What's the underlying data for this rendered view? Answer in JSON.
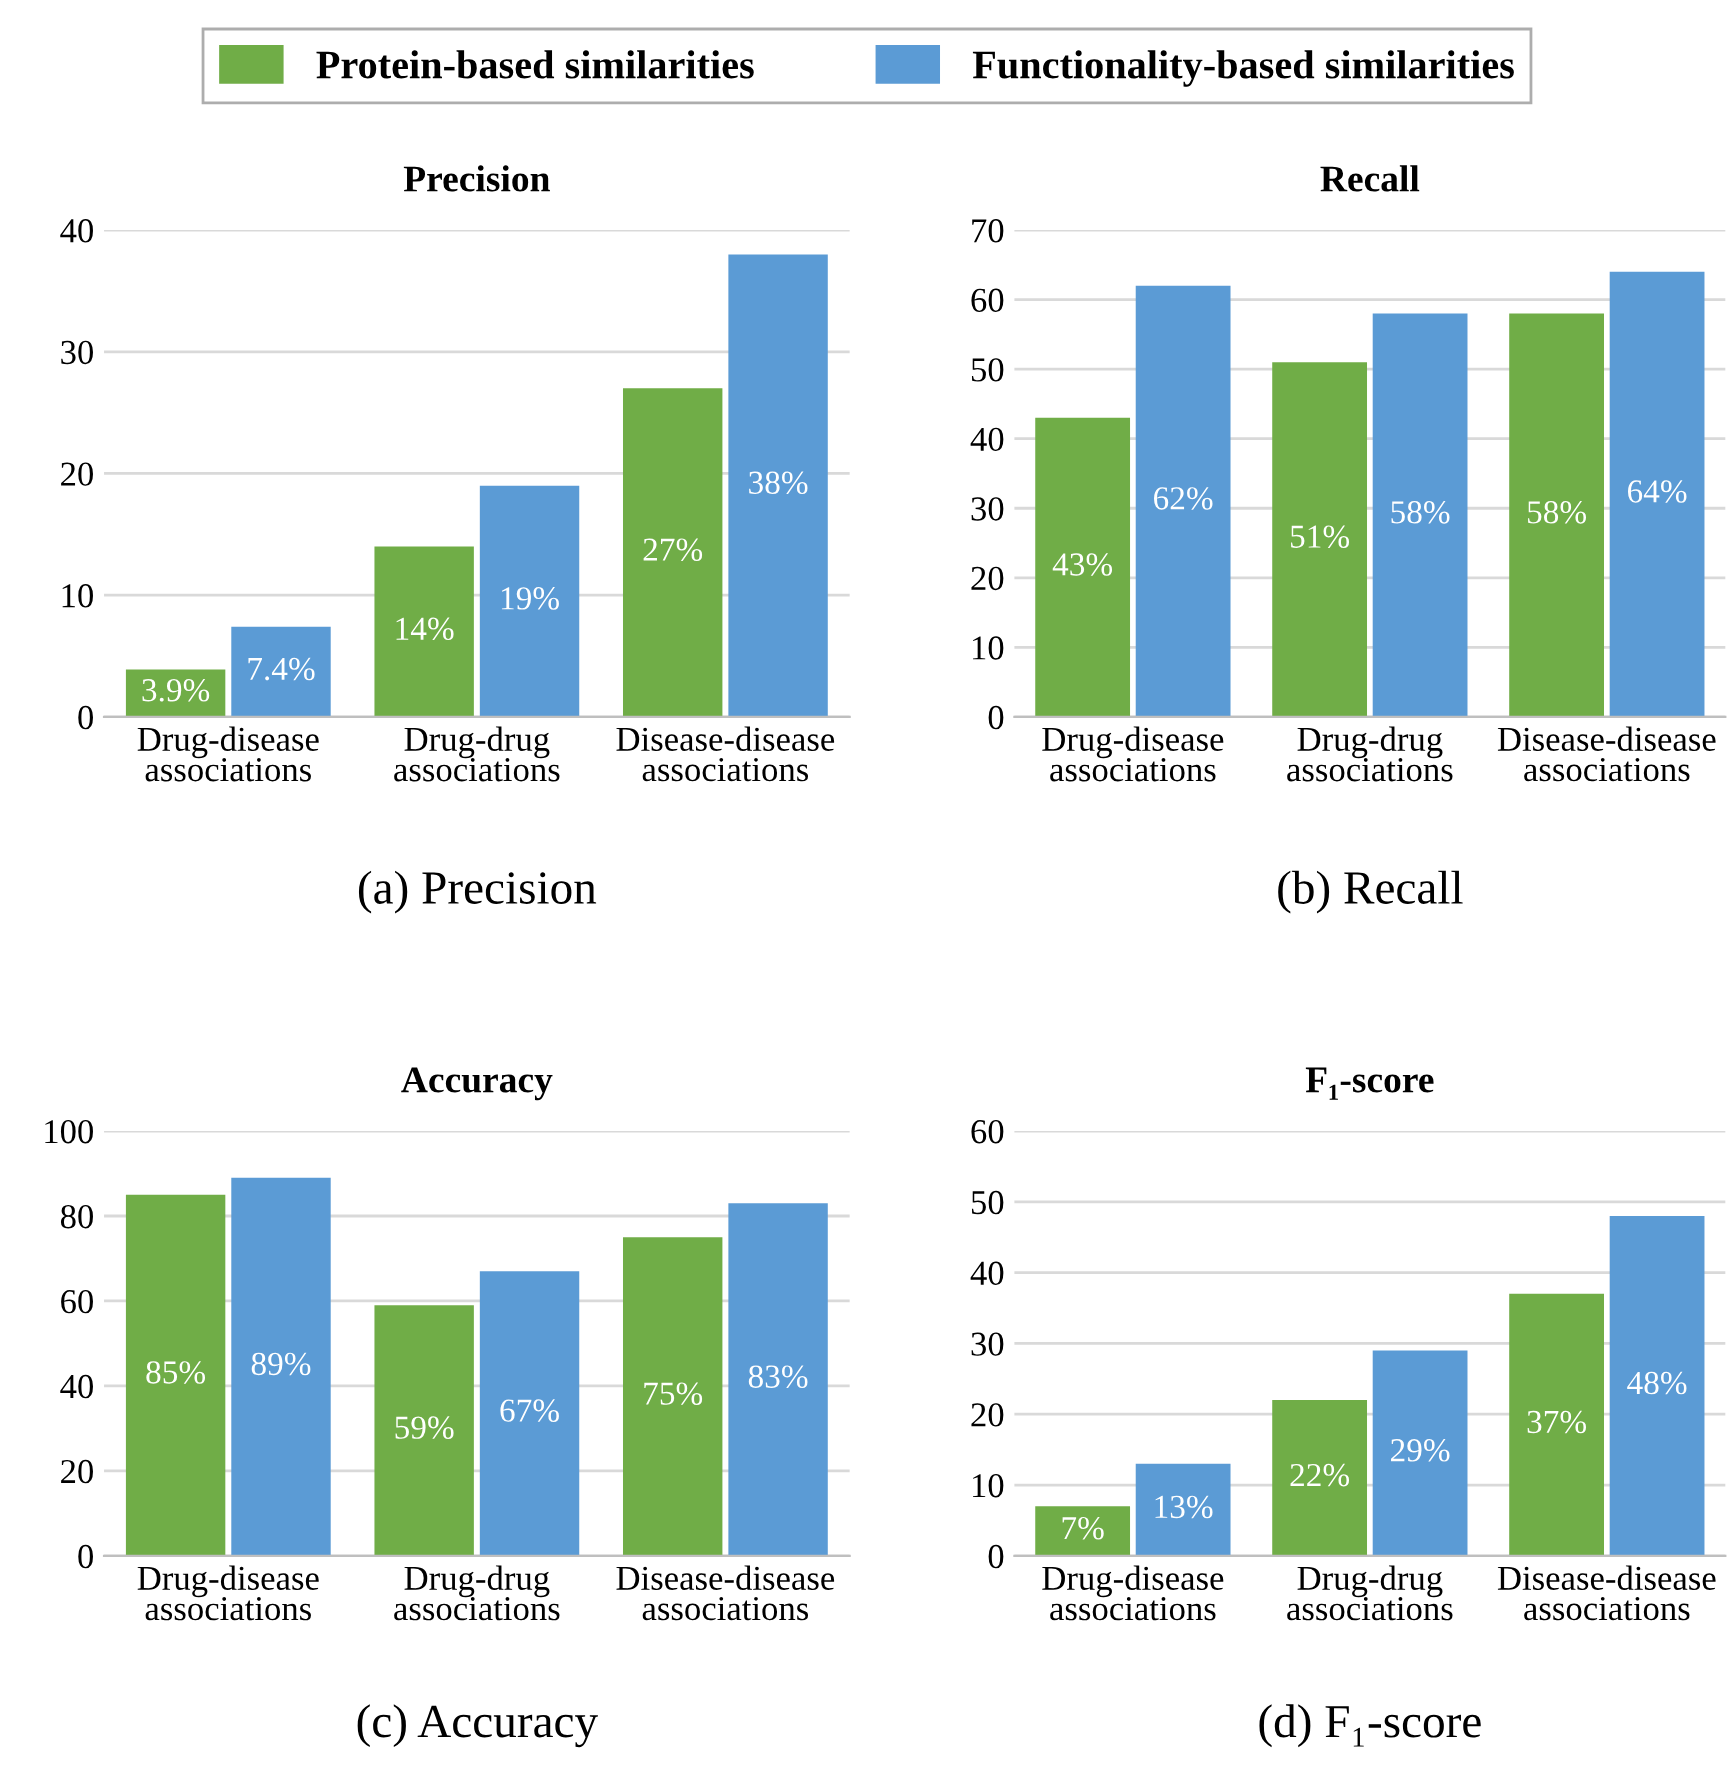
{
  "chart_data": [
    {
      "type": "bar",
      "title": "Precision",
      "categories": [
        "Drug-disease\nassociations",
        "Drug-drug\nassociations",
        "Disease-disease\nassociations"
      ],
      "series": [
        {
          "name": "Protein-based similarities",
          "color": "#70ad47",
          "values": [
            3.9,
            14,
            27
          ],
          "value_labels": [
            "3.9%",
            "14%",
            "27%"
          ]
        },
        {
          "name": "Functionality-based similarities",
          "color": "#5b9bd5",
          "values": [
            7.4,
            19,
            38
          ],
          "value_labels": [
            "7.4%",
            "19%",
            "38%"
          ]
        }
      ],
      "ylim": [
        0,
        40
      ],
      "yticks": [
        0,
        10,
        20,
        30,
        40
      ],
      "grid": "y",
      "legend": "top",
      "annotations": [
        "(a) Precision"
      ]
    },
    {
      "type": "bar",
      "title": "Recall",
      "categories": [
        "Drug-disease\nassociations",
        "Drug-drug\nassociations",
        "Disease-disease\nassociations"
      ],
      "series": [
        {
          "color": "#70ad47",
          "values": [
            43,
            51,
            58
          ],
          "value_labels": [
            "43%",
            "51%",
            "58%"
          ]
        },
        {
          "color": "#5b9bd5",
          "values": [
            62,
            58,
            64
          ],
          "value_labels": [
            "62%",
            "58%",
            "64%"
          ]
        }
      ],
      "ylim": [
        0,
        70
      ],
      "yticks": [
        0,
        10,
        20,
        30,
        40,
        50,
        60,
        70
      ],
      "grid": "y",
      "annotations": [
        "(b) Recall"
      ]
    },
    {
      "type": "bar",
      "title": "Accuracy",
      "categories": [
        "Drug-disease\nassociations",
        "Drug-drug\nassociations",
        "Disease-disease\nassociations"
      ],
      "series": [
        {
          "color": "#70ad47",
          "values": [
            85,
            59,
            75
          ],
          "value_labels": [
            "85%",
            "59%",
            "75%"
          ]
        },
        {
          "color": "#5b9bd5",
          "values": [
            89,
            67,
            83
          ],
          "value_labels": [
            "89%",
            "67%",
            "83%"
          ]
        }
      ],
      "ylim": [
        0,
        100
      ],
      "yticks": [
        0,
        20,
        40,
        60,
        80,
        100
      ],
      "grid": "y",
      "annotations": [
        "(c) Accuracy"
      ]
    },
    {
      "type": "bar",
      "title": "F₁-score",
      "categories": [
        "Drug-disease\nassociations",
        "Drug-drug\nassociations",
        "Disease-disease\nassociations"
      ],
      "series": [
        {
          "color": "#70ad47",
          "values": [
            7,
            22,
            37
          ],
          "value_labels": [
            "7%",
            "22%",
            "37%"
          ]
        },
        {
          "color": "#5b9bd5",
          "values": [
            13,
            29,
            48
          ],
          "value_labels": [
            "13%",
            "29%",
            "48%"
          ]
        }
      ],
      "ylim": [
        0,
        60
      ],
      "yticks": [
        0,
        10,
        20,
        30,
        40,
        50,
        60
      ],
      "grid": "y",
      "annotations": [
        "(d) F₁-score"
      ]
    }
  ]
}
